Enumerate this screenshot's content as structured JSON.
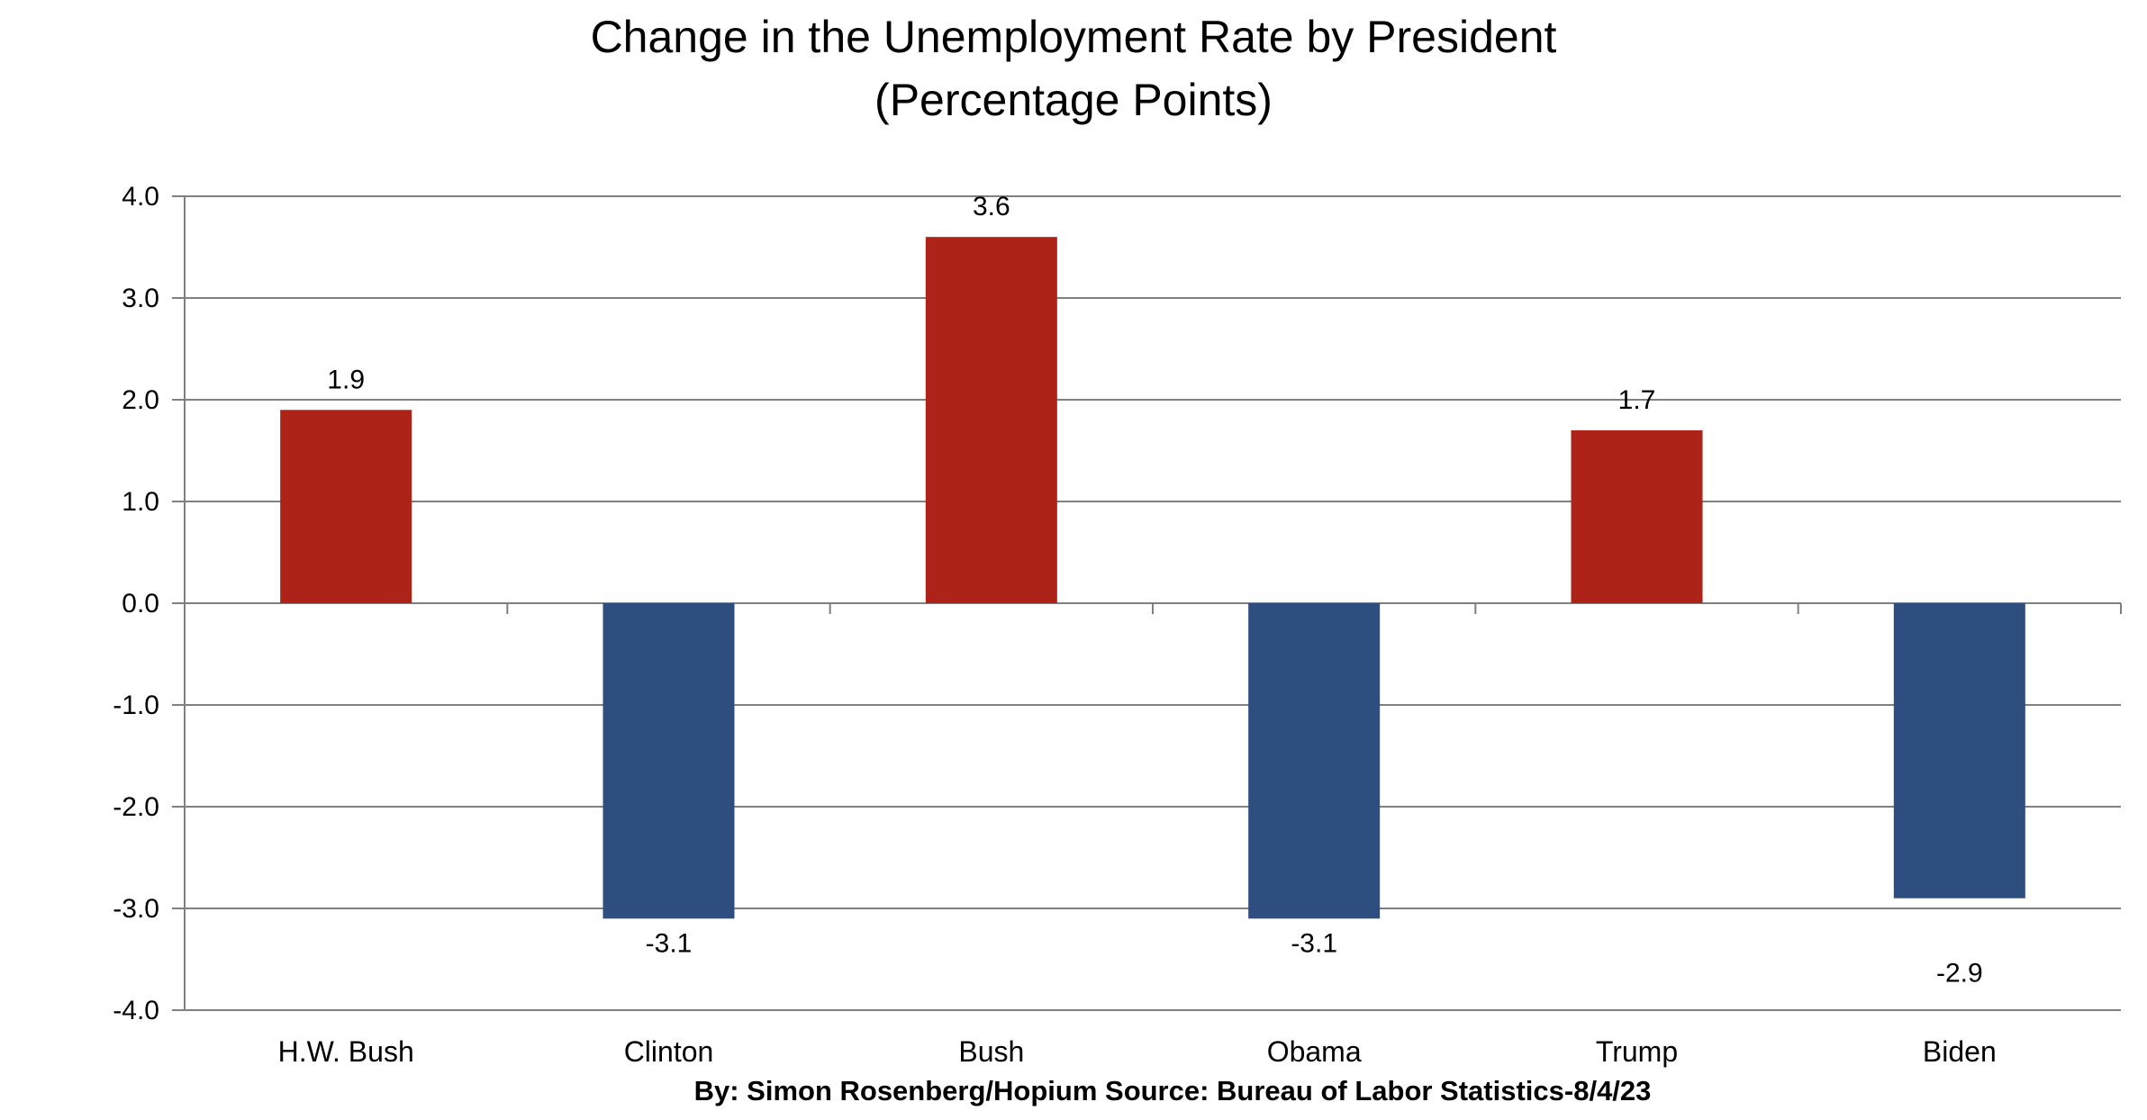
{
  "chart_data": {
    "type": "bar",
    "title": "Change in the Unemployment Rate by President",
    "subtitle": "(Percentage Points)",
    "categories": [
      "H.W. Bush",
      "Clinton",
      "Bush",
      "Obama",
      "Trump",
      "Biden"
    ],
    "values": [
      1.9,
      -3.1,
      3.6,
      -3.1,
      1.7,
      -2.9
    ],
    "value_labels": [
      "1.9",
      "-3.1",
      "3.6",
      "-3.1",
      "1.7",
      "-2.9"
    ],
    "ylim": [
      -4.0,
      4.0
    ],
    "yticks": [
      4.0,
      3.0,
      2.0,
      1.0,
      0.0,
      -1.0,
      -2.0,
      -3.0,
      -4.0
    ],
    "ytick_labels": [
      "4.0",
      "3.0",
      "2.0",
      "1.0",
      "0.0",
      "-1.0",
      "-2.0",
      "-3.0",
      "-4.0"
    ],
    "xlabel": "",
    "ylabel": "",
    "grid": true,
    "legend": "none",
    "colors": {
      "positive": "#AD2318",
      "negative": "#2E4E80",
      "grid": "#808080",
      "axis": "#808080"
    }
  },
  "source_note": "By: Simon Rosenberg/Hopium Source: Bureau of Labor Statistics-8/4/23"
}
